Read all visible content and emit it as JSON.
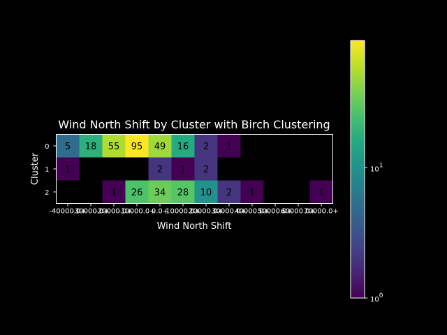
{
  "chart_data": {
    "type": "heatmap",
    "title": "Wind North Shift by Cluster with Birch Clustering",
    "xlabel": "Wind North Shift",
    "ylabel": "Cluster",
    "x_tick_labels": [
      "-40000.0+",
      "-30000.0+",
      "-20000.0+",
      "-10000.0+",
      "0.0+",
      "10000.0+",
      "20000.0+",
      "30000.0+",
      "40000.0+",
      "50000.0+",
      "60000.0+",
      "70000.0+"
    ],
    "y_tick_labels": [
      "0",
      "1",
      "2"
    ],
    "color_scale": "log",
    "colormap": "viridis",
    "vmin": 1,
    "vmax": 95,
    "colorbar_ticks": [
      {
        "value": 1,
        "base": "10",
        "exp": "0"
      },
      {
        "value": 10,
        "base": "10",
        "exp": "1"
      }
    ],
    "rows": [
      {
        "cluster": "0",
        "values": [
          5,
          18,
          55,
          95,
          49,
          16,
          2,
          1,
          null,
          null,
          null,
          null
        ]
      },
      {
        "cluster": "1",
        "values": [
          1,
          null,
          null,
          null,
          2,
          1,
          2,
          null,
          null,
          null,
          null,
          null
        ]
      },
      {
        "cluster": "2",
        "values": [
          null,
          null,
          1,
          26,
          34,
          28,
          10,
          2,
          1,
          null,
          null,
          1
        ]
      }
    ]
  }
}
